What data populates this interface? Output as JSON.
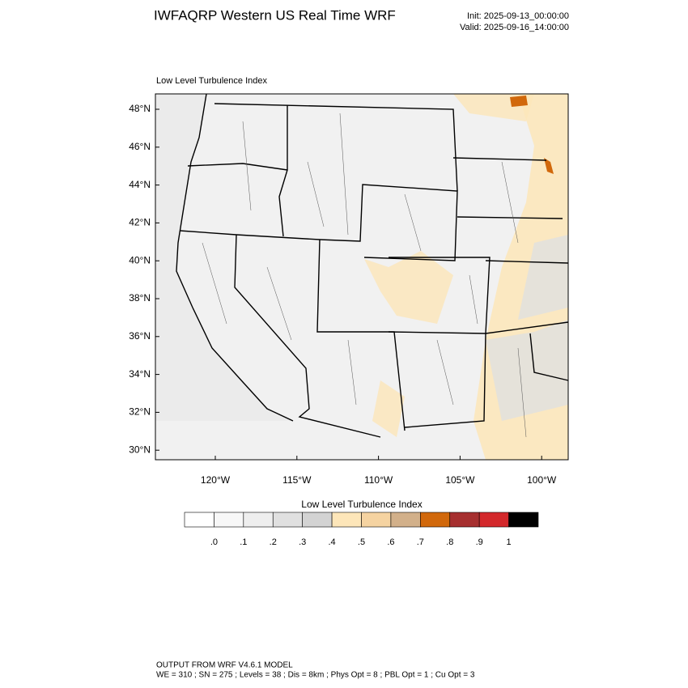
{
  "header": {
    "title": "IWFAQRP Western US Real Time WRF",
    "init": "Init: 2025-09-13_00:00:00",
    "valid": "Valid: 2025-09-16_14:00:00"
  },
  "map": {
    "title": "Low Level Turbulence Index",
    "lat_labels": [
      "48°N",
      "46°N",
      "44°N",
      "42°N",
      "40°N",
      "38°N",
      "36°N",
      "34°N",
      "32°N",
      "30°N"
    ],
    "lon_labels": [
      "120°W",
      "115°W",
      "110°W",
      "105°W",
      "100°W"
    ]
  },
  "colorbar": {
    "title": "Low Level Turbulence Index",
    "colors": [
      "#ffffff",
      "#f7f7f7",
      "#eeeeee",
      "#e0e0e0",
      "#d3d3d3",
      "#fde6b9",
      "#f5d3a1",
      "#d2b08a",
      "#d1680b",
      "#a62f2f",
      "#d3282b",
      "#000000"
    ],
    "labels": [
      ".0",
      ".1",
      ".2",
      ".3",
      ".4",
      ".5",
      ".6",
      ".7",
      ".8",
      ".9",
      "1"
    ]
  },
  "footer": {
    "lines": [
      "OUTPUT FROM WRF V4.6.1 MODEL",
      "WE = 310 ; SN = 275 ; Levels = 38 ; Dis = 8km ; Phys Opt = 8 ; PBL Opt = 1 ; Cu Opt = 3"
    ]
  }
}
